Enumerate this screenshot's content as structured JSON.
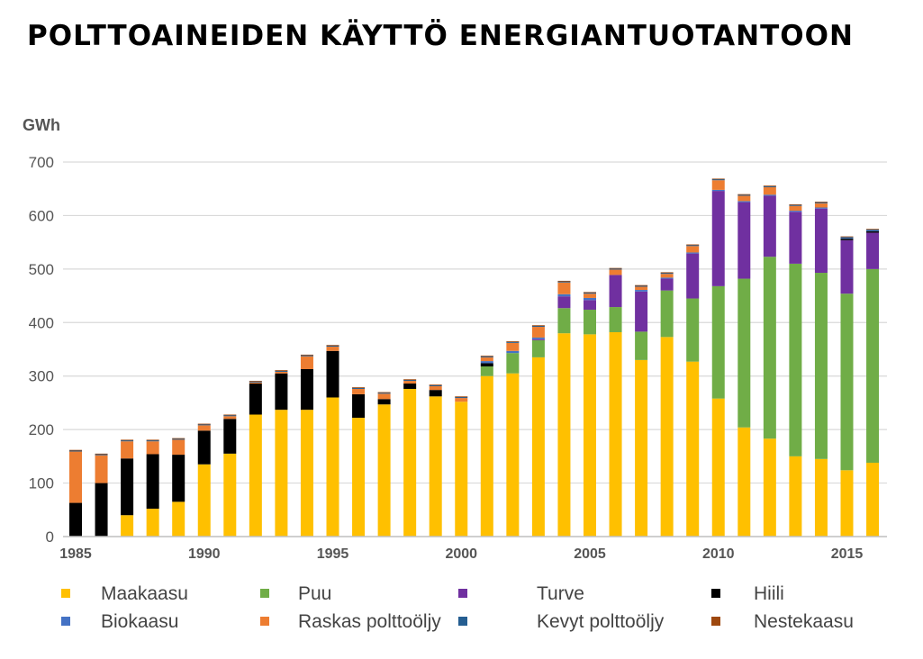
{
  "title": "POLTTOAINEIDEN KÄYTTÖ ENERGIANTUOTANTOON",
  "chart_data": {
    "type": "bar",
    "stacked": true,
    "title": "POLTTOAINEIDEN KÄYTTÖ ENERGIANTUOTANTOON",
    "unit_label": "GWh",
    "ylim": [
      0,
      700
    ],
    "y_ticks": [
      "0",
      "100",
      "200",
      "300",
      "400",
      "500",
      "600",
      "700"
    ],
    "grid": "horizontal",
    "legend_position": "bottom",
    "categories": [
      1985,
      1986,
      1987,
      1988,
      1989,
      1990,
      1991,
      1992,
      1993,
      1994,
      1995,
      1996,
      1997,
      1998,
      1999,
      2000,
      2001,
      2002,
      2003,
      2004,
      2005,
      2006,
      2007,
      2008,
      2009,
      2010,
      2011,
      2012,
      2013,
      2014,
      2015,
      2016
    ],
    "x_tick_labels": [
      {
        "year": 1985,
        "label": "1985"
      },
      {
        "year": 1990,
        "label": "1990"
      },
      {
        "year": 1995,
        "label": "1995"
      },
      {
        "year": 2000,
        "label": "2000"
      },
      {
        "year": 2005,
        "label": "2005"
      },
      {
        "year": 2010,
        "label": "2010"
      },
      {
        "year": 2015,
        "label": "2015"
      }
    ],
    "series": [
      {
        "name": "Maakaasu",
        "color": "#FFC000",
        "values": [
          0,
          0,
          40,
          52,
          65,
          135,
          155,
          228,
          237,
          237,
          260,
          222,
          247,
          276,
          262,
          252,
          300,
          305,
          335,
          380,
          378,
          382,
          330,
          373,
          327,
          258,
          204,
          183,
          150,
          145,
          124,
          138
        ]
      },
      {
        "name": "Puu",
        "color": "#70AD47",
        "values": [
          0,
          0,
          0,
          0,
          0,
          0,
          0,
          0,
          0,
          0,
          0,
          0,
          0,
          0,
          0,
          0,
          18,
          38,
          32,
          47,
          46,
          47,
          53,
          87,
          118,
          210,
          278,
          340,
          360,
          348,
          330,
          362
        ]
      },
      {
        "name": "Turve",
        "color": "#7030A0",
        "values": [
          0,
          0,
          0,
          0,
          0,
          0,
          0,
          0,
          0,
          0,
          0,
          0,
          0,
          0,
          0,
          0,
          0,
          0,
          2,
          22,
          18,
          60,
          75,
          22,
          84,
          178,
          143,
          114,
          97,
          120,
          100,
          68
        ]
      },
      {
        "name": "Hiili",
        "color": "#000000",
        "values": [
          63,
          100,
          106,
          102,
          88,
          63,
          65,
          58,
          68,
          76,
          87,
          44,
          10,
          10,
          12,
          0,
          6,
          0,
          0,
          0,
          0,
          0,
          0,
          0,
          0,
          0,
          0,
          0,
          0,
          0,
          3,
          3
        ]
      },
      {
        "name": "Biokaasu",
        "color": "#4472C4",
        "values": [
          0,
          0,
          0,
          0,
          0,
          0,
          0,
          0,
          0,
          0,
          0,
          0,
          0,
          0,
          0,
          0,
          4,
          4,
          3,
          4,
          4,
          0,
          3,
          2,
          2,
          2,
          2,
          2,
          2,
          2,
          1,
          1
        ]
      },
      {
        "name": "Raskas polttoöljy",
        "color": "#ED7D31",
        "values": [
          96,
          52,
          32,
          24,
          28,
          10,
          5,
          2,
          3,
          24,
          8,
          10,
          10,
          5,
          7,
          7,
          7,
          15,
          20,
          22,
          8,
          10,
          6,
          7,
          12,
          18,
          10,
          14,
          9,
          8,
          0,
          0
        ]
      },
      {
        "name": "Kevyt polttoöljy",
        "color": "#255E91",
        "values": [
          2,
          2,
          2,
          2,
          2,
          2,
          2,
          2,
          2,
          2,
          2,
          2,
          2,
          2,
          2,
          2,
          2,
          2,
          2,
          2,
          2,
          2,
          2,
          2,
          2,
          2,
          2,
          2,
          2,
          2,
          2,
          2
        ]
      },
      {
        "name": "Nestekaasu",
        "color": "#9E480E",
        "values": [
          1,
          1,
          1,
          1,
          1,
          1,
          1,
          1,
          1,
          1,
          1,
          1,
          1,
          1,
          1,
          1,
          1,
          1,
          1,
          1,
          1,
          1,
          1,
          1,
          1,
          1,
          1,
          1,
          1,
          1,
          1,
          1
        ]
      }
    ]
  }
}
